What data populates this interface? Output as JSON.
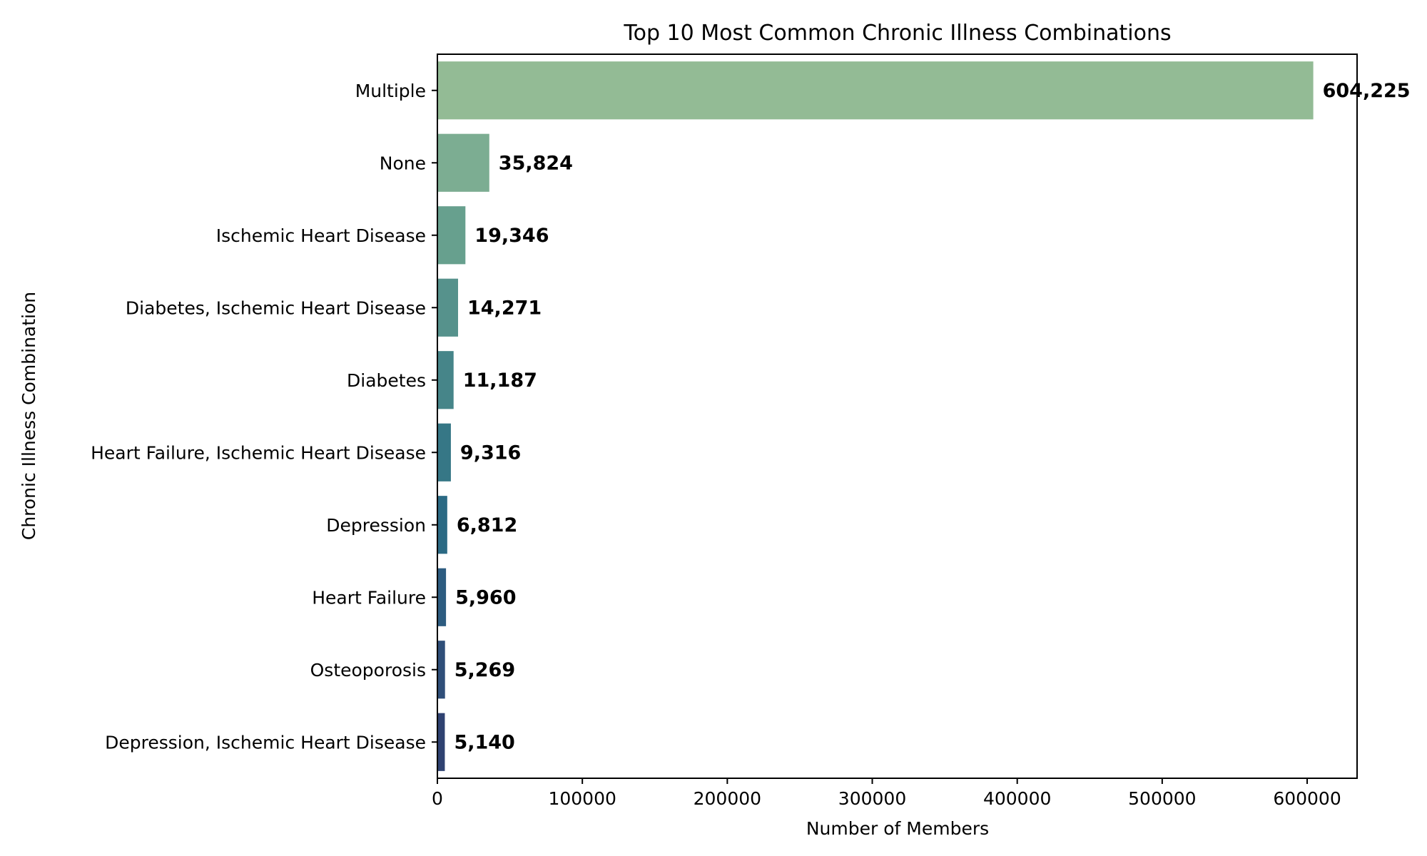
{
  "chart_data": {
    "type": "bar",
    "orientation": "horizontal",
    "title": "Top 10 Most Common Chronic Illness Combinations",
    "xlabel": "Number of Members",
    "ylabel": "Chronic Illness Combination",
    "categories": [
      "Multiple",
      "None",
      "Ischemic Heart Disease",
      "Diabetes, Ischemic Heart Disease",
      "Diabetes",
      "Heart Failure, Ischemic Heart Disease",
      "Depression",
      "Heart Failure",
      "Osteoporosis",
      "Depression, Ischemic Heart Disease"
    ],
    "values": [
      604225,
      35824,
      19346,
      14271,
      11187,
      9316,
      6812,
      5960,
      5269,
      5140
    ],
    "value_labels": [
      "604,225",
      "35,824",
      "19,346",
      "14,271",
      "11,187",
      "9,316",
      "6,812",
      "5,960",
      "5,269",
      "5,140"
    ],
    "xlim": [
      0,
      634436
    ],
    "xticks": [
      0,
      100000,
      200000,
      300000,
      400000,
      500000,
      600000
    ],
    "xtick_labels": [
      "0",
      "100000",
      "200000",
      "300000",
      "400000",
      "500000",
      "600000"
    ],
    "grid": false,
    "colors": [
      "#93bb95",
      "#7cad92",
      "#67a08e",
      "#56928c",
      "#468589",
      "#367786",
      "#2b6a84",
      "#2d5c80",
      "#2f4f79",
      "#2f4271"
    ]
  }
}
